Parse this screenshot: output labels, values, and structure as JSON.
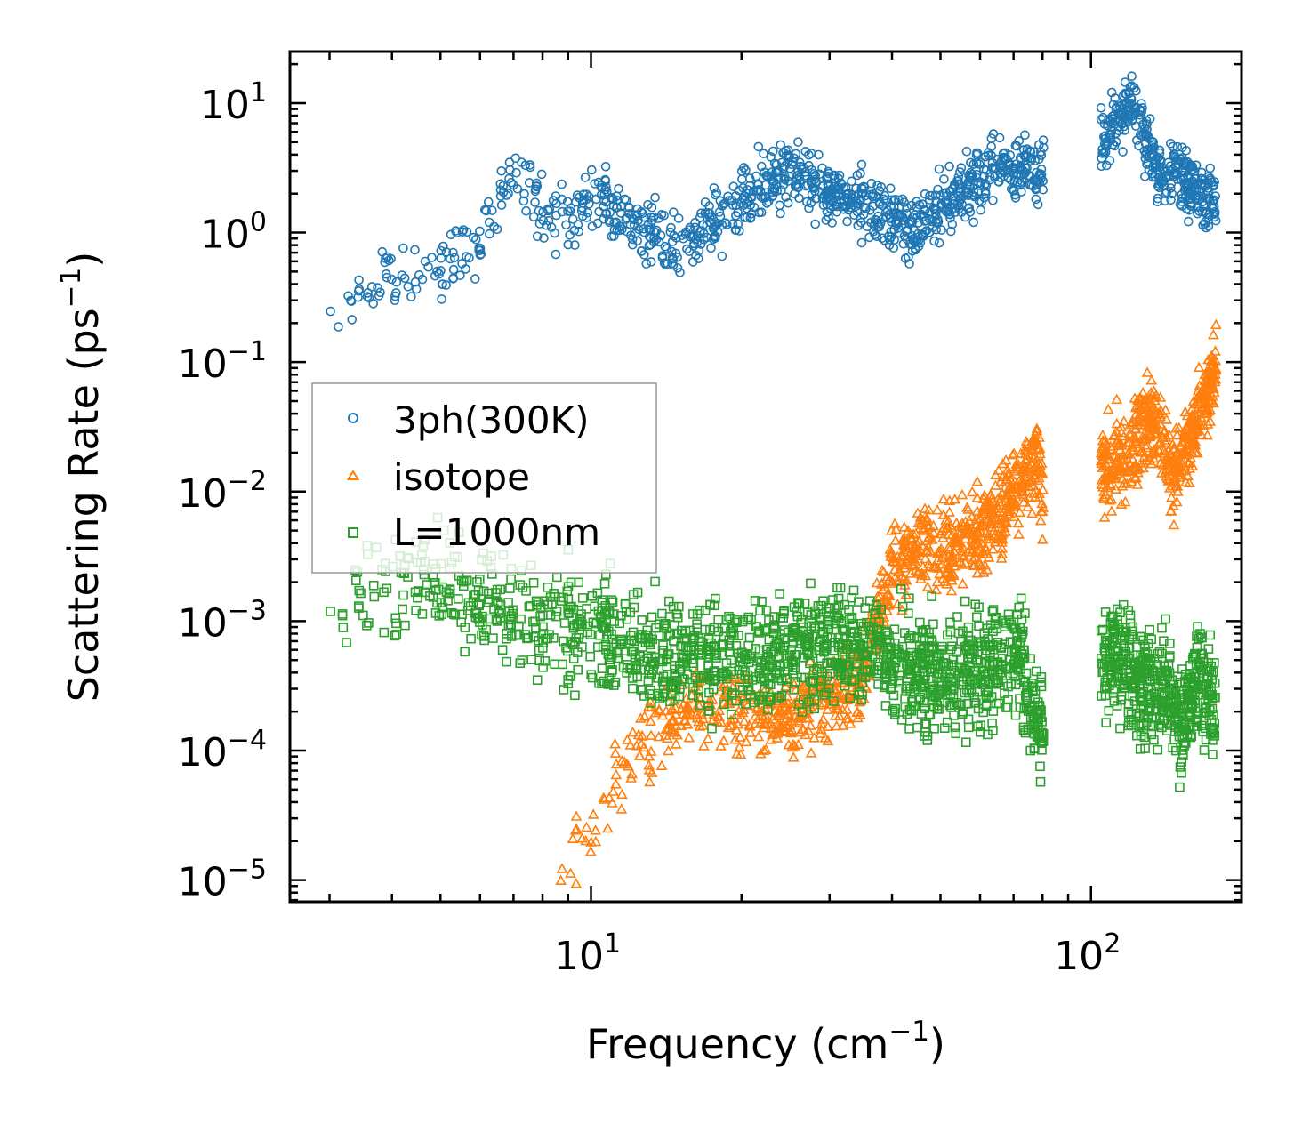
{
  "chart_data": {
    "type": "scatter",
    "xscale": "log",
    "yscale": "log",
    "xlim": [
      2.5,
      200
    ],
    "ylim": [
      6.8e-06,
      25
    ],
    "xlabel_main": "Frequency (cm",
    "xlabel_exp": "−1",
    "xlabel_close": ")",
    "ylabel_main": "Scattering Rate (ps",
    "ylabel_exp": "−1",
    "ylabel_close": ")",
    "x_ticks": [
      {
        "value": 10,
        "base": "10",
        "exp": "1"
      },
      {
        "value": 100,
        "base": "10",
        "exp": "2"
      }
    ],
    "y_ticks": [
      {
        "value": 10,
        "base": "10",
        "exp": "1"
      },
      {
        "value": 1,
        "base": "10",
        "exp": "0"
      },
      {
        "value": 0.1,
        "base": "10",
        "exp": "−1"
      },
      {
        "value": 0.01,
        "base": "10",
        "exp": "−2"
      },
      {
        "value": 0.001,
        "base": "10",
        "exp": "−3"
      },
      {
        "value": 0.0001,
        "base": "10",
        "exp": "−4"
      },
      {
        "value": 1e-05,
        "base": "10",
        "exp": "−5"
      }
    ],
    "legend_position": "center-left",
    "series": [
      {
        "name": "3ph(300K)",
        "marker": "circle",
        "color": "#1f77b4",
        "envelope": [
          [
            2.9,
            0.31
          ],
          [
            4.1,
            0.47
          ],
          [
            5.2,
            0.52
          ],
          [
            5.6,
            0.75
          ],
          [
            6.0,
            0.95
          ],
          [
            7.0,
            2.8
          ],
          [
            8.0,
            1.6
          ],
          [
            9.0,
            1.4
          ],
          [
            10,
            1.9
          ],
          [
            11,
            1.5
          ],
          [
            12.5,
            1.1
          ],
          [
            14,
            0.85
          ],
          [
            15.5,
            0.75
          ],
          [
            17,
            1.1
          ],
          [
            19,
            1.5
          ],
          [
            21,
            1.9
          ],
          [
            23,
            2.6
          ],
          [
            26,
            3.2
          ],
          [
            29,
            2.1
          ],
          [
            33,
            1.9
          ],
          [
            38,
            1.4
          ],
          [
            44,
            1.0
          ],
          [
            50,
            1.6
          ],
          [
            58,
            2.2
          ],
          [
            65,
            3.6
          ],
          [
            72,
            3.3
          ],
          [
            80,
            3.0
          ],
          [
            105,
            5.0
          ],
          [
            115,
            7.5
          ],
          [
            122,
            9.5
          ],
          [
            130,
            4.5
          ],
          [
            140,
            2.8
          ],
          [
            150,
            3.0
          ],
          [
            165,
            1.9
          ],
          [
            178,
            1.6
          ]
        ]
      },
      {
        "name": "isotope",
        "marker": "triangle",
        "color": "#ff7f0e",
        "envelope": [
          [
            8.6,
            1.1e-05
          ],
          [
            10,
            3.2e-05
          ],
          [
            12,
            9e-05
          ],
          [
            14,
            0.00015
          ],
          [
            16,
            0.00022
          ],
          [
            20,
            0.0002
          ],
          [
            25,
            0.00018
          ],
          [
            30,
            0.00026
          ],
          [
            35,
            0.0004
          ],
          [
            40,
            0.0025
          ],
          [
            45,
            0.0038
          ],
          [
            50,
            0.0035
          ],
          [
            58,
            0.0048
          ],
          [
            65,
            0.0062
          ],
          [
            72,
            0.011
          ],
          [
            78,
            0.02
          ],
          [
            82,
            0.0048
          ],
          [
            105,
            0.014
          ],
          [
            115,
            0.018
          ],
          [
            125,
            0.028
          ],
          [
            135,
            0.035
          ],
          [
            145,
            0.012
          ],
          [
            160,
            0.03
          ],
          [
            170,
            0.06
          ],
          [
            178,
            0.09
          ]
        ]
      },
      {
        "name": "L=1000nm",
        "marker": "square",
        "color": "#2ca02c",
        "envelope": [
          [
            2.9,
            0.002
          ],
          [
            4.1,
            0.0017
          ],
          [
            5.2,
            0.0019
          ],
          [
            6.0,
            0.0013
          ],
          [
            7.5,
            0.0012
          ],
          [
            9.0,
            0.0009
          ],
          [
            10.5,
            0.0008
          ],
          [
            12,
            0.00062
          ],
          [
            15,
            0.00052
          ],
          [
            20,
            0.00052
          ],
          [
            25,
            0.00058
          ],
          [
            30,
            0.00072
          ],
          [
            35,
            0.00058
          ],
          [
            40,
            0.00048
          ],
          [
            48,
            0.00038
          ],
          [
            55,
            0.0004
          ],
          [
            65,
            0.00045
          ],
          [
            72,
            0.00058
          ],
          [
            78,
            0.00018
          ],
          [
            82,
            0.00026
          ],
          [
            105,
            0.0004
          ],
          [
            115,
            0.00052
          ],
          [
            125,
            0.00028
          ],
          [
            140,
            0.00032
          ],
          [
            150,
            0.00015
          ],
          [
            165,
            0.00038
          ],
          [
            178,
            0.0002
          ]
        ]
      }
    ]
  }
}
